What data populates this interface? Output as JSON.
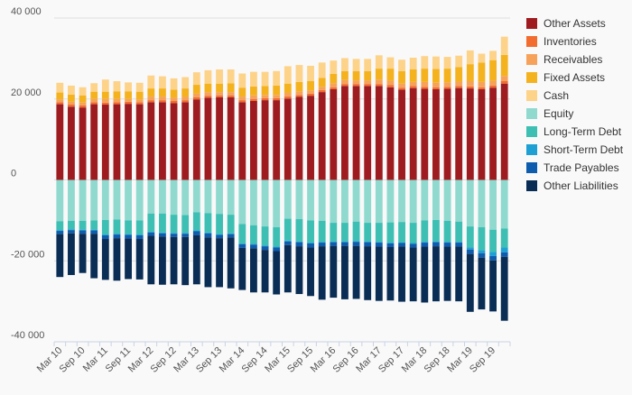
{
  "chart_data": {
    "type": "bar",
    "stacked": true,
    "y_ticks": [
      "40 000",
      "20 000",
      "0",
      "-20 000",
      "-40 000"
    ],
    "ylim": [
      -40000,
      40000
    ],
    "x_tick_labels": [
      "Mar 10",
      "Sep 10",
      "Mar 11",
      "Sep 11",
      "Mar 12",
      "Sep 12",
      "Mar 13",
      "Sep 13",
      "Mar 14",
      "Sep 14",
      "Mar 15",
      "Sep 15",
      "Mar 16",
      "Sep 16",
      "Mar 17",
      "Sep 17",
      "Mar 18",
      "Sep 18",
      "Mar 19",
      "Sep 19"
    ],
    "grid": true,
    "legend_position": "right",
    "categories": [
      "Mar 10",
      "Jun 10",
      "Sep 10",
      "Dec 10",
      "Mar 11",
      "Jun 11",
      "Sep 11",
      "Dec 11",
      "Mar 12",
      "Jun 12",
      "Sep 12",
      "Dec 12",
      "Mar 13",
      "Jun 13",
      "Sep 13",
      "Dec 13",
      "Mar 14",
      "Jun 14",
      "Sep 14",
      "Dec 14",
      "Mar 15",
      "Jun 15",
      "Sep 15",
      "Dec 15",
      "Mar 16",
      "Jun 16",
      "Sep 16",
      "Dec 16",
      "Mar 17",
      "Jun 17",
      "Sep 17",
      "Dec 17",
      "Mar 18",
      "Jun 18",
      "Sep 18",
      "Dec 18",
      "Mar 19",
      "Jun 19",
      "Sep 19",
      "Dec 19"
    ],
    "series": [
      {
        "name": "Other Assets",
        "color": "#9e1b1f",
        "values": [
          18700,
          18100,
          17900,
          18700,
          18600,
          18700,
          18800,
          18700,
          19200,
          19200,
          19000,
          19200,
          19900,
          20300,
          20400,
          20400,
          19200,
          19500,
          19700,
          19700,
          20100,
          20500,
          20800,
          21700,
          22400,
          23200,
          23200,
          23200,
          23200,
          22900,
          22300,
          22700,
          22500,
          22400,
          22500,
          22700,
          22600,
          22400,
          22800,
          23800
        ]
      },
      {
        "name": "Inventories",
        "color": "#f26b2f",
        "values": [
          500,
          500,
          500,
          500,
          500,
          500,
          500,
          500,
          500,
          500,
          500,
          500,
          500,
          500,
          500,
          500,
          500,
          500,
          500,
          500,
          500,
          500,
          500,
          500,
          500,
          500,
          500,
          500,
          500,
          500,
          500,
          500,
          500,
          500,
          500,
          500,
          500,
          500,
          500,
          600
        ]
      },
      {
        "name": "Receivables",
        "color": "#f7a25a",
        "values": [
          700,
          700,
          700,
          800,
          900,
          800,
          700,
          700,
          900,
          900,
          800,
          800,
          900,
          900,
          800,
          800,
          900,
          900,
          800,
          800,
          900,
          900,
          800,
          800,
          1000,
          1000,
          900,
          900,
          1100,
          1100,
          1000,
          1000,
          1200,
          1100,
          1100,
          1100,
          1300,
          1300,
          1200,
          1300
        ]
      },
      {
        "name": "Fixed Assets",
        "color": "#f5b21f",
        "values": [
          1700,
          1800,
          1800,
          1800,
          1800,
          1900,
          1900,
          1900,
          2000,
          2000,
          2000,
          2100,
          2200,
          2100,
          2100,
          2200,
          2200,
          2200,
          2200,
          2300,
          2300,
          2300,
          2300,
          2200,
          2300,
          2200,
          2300,
          2300,
          2700,
          3000,
          3100,
          3100,
          3300,
          3400,
          3400,
          3600,
          4200,
          4800,
          5100,
          5200
        ]
      },
      {
        "name": "Cash",
        "color": "#fdd38a",
        "values": [
          2400,
          2200,
          2000,
          2100,
          3000,
          2500,
          2200,
          2200,
          3200,
          3000,
          2800,
          2800,
          3100,
          3300,
          3500,
          3400,
          3500,
          3600,
          3500,
          3600,
          4300,
          4200,
          3800,
          3800,
          3300,
          3200,
          3000,
          3000,
          3300,
          2800,
          2800,
          2900,
          3100,
          3100,
          2900,
          2800,
          3400,
          2200,
          2300,
          4500
        ]
      },
      {
        "name": "Equity",
        "color": "#8fd9cf",
        "values": [
          -10200,
          -10100,
          -10100,
          -10000,
          -9900,
          -9800,
          -10000,
          -10000,
          -8300,
          -8300,
          -8600,
          -8700,
          -8000,
          -8200,
          -8400,
          -8600,
          -10900,
          -11200,
          -11500,
          -11700,
          -9600,
          -9700,
          -10000,
          -10100,
          -10600,
          -10600,
          -10300,
          -10600,
          -10600,
          -10500,
          -10400,
          -10600,
          -10000,
          -9900,
          -10100,
          -10300,
          -11500,
          -11700,
          -12300,
          -12000
        ]
      },
      {
        "name": "Long-Term Debt",
        "color": "#3ebfb3",
        "values": [
          -2200,
          -2100,
          -2200,
          -2300,
          -3600,
          -3500,
          -3400,
          -3500,
          -4500,
          -4700,
          -4500,
          -4400,
          -4500,
          -4800,
          -5000,
          -4600,
          -4800,
          -4600,
          -4700,
          -4800,
          -5400,
          -5500,
          -5500,
          -5200,
          -4600,
          -4600,
          -4800,
          -4600,
          -4700,
          -5000,
          -5000,
          -5000,
          -5300,
          -5300,
          -5200,
          -5000,
          -5200,
          -5700,
          -5500,
          -4700
        ]
      },
      {
        "name": "Short-Term Debt",
        "color": "#1ea0d4",
        "values": [
          -200,
          -200,
          -200,
          -200,
          -200,
          -200,
          -200,
          -200,
          -200,
          -200,
          -200,
          -200,
          -200,
          -200,
          -200,
          -200,
          -200,
          -200,
          -200,
          -200,
          -200,
          -200,
          -200,
          -200,
          -200,
          -200,
          -200,
          -200,
          -200,
          -200,
          -200,
          -200,
          -200,
          -200,
          -200,
          -200,
          -500,
          -700,
          -1000,
          -1200
        ]
      },
      {
        "name": "Trade Payables",
        "color": "#0d5cad",
        "values": [
          -800,
          -800,
          -800,
          -800,
          -900,
          -900,
          -900,
          -900,
          -800,
          -800,
          -800,
          -800,
          -1000,
          -1000,
          -800,
          -800,
          -900,
          -900,
          -900,
          -900,
          -900,
          -1000,
          -1000,
          -900,
          -900,
          -900,
          -1000,
          -1000,
          -1000,
          -900,
          -900,
          -900,
          -1000,
          -1000,
          -1000,
          -1000,
          -1100,
          -1100,
          -1100,
          -1100
        ]
      },
      {
        "name": "Other Liabilities",
        "color": "#0a2d55",
        "values": [
          -10600,
          -10300,
          -9700,
          -11000,
          -10100,
          -10500,
          -10000,
          -10000,
          -12000,
          -11900,
          -11700,
          -11900,
          -12100,
          -12300,
          -12100,
          -12600,
          -10400,
          -10900,
          -10500,
          -10700,
          -11700,
          -11800,
          -12000,
          -13200,
          -12800,
          -13200,
          -13100,
          -13300,
          -13400,
          -13200,
          -13600,
          -13300,
          -13800,
          -13600,
          -13400,
          -13500,
          -14300,
          -12800,
          -12600,
          -15800
        ]
      }
    ]
  }
}
